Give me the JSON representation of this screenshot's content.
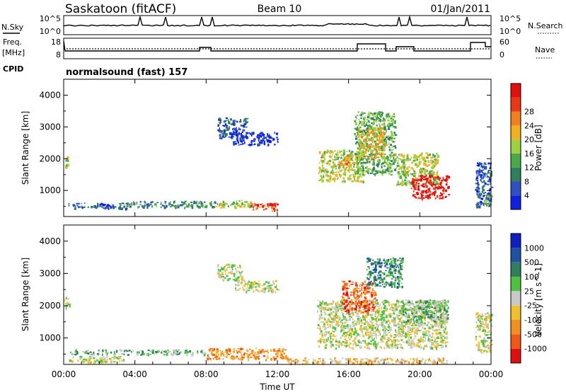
{
  "header": {
    "station": "Saskatoon (fitACF)",
    "beam": "Beam 10",
    "date": "01/Jan/2011"
  },
  "status_panels": {
    "noise": {
      "left_label": "N.Sky",
      "right_label": "N.Search",
      "left_ticks": [
        "10^5",
        "10^0"
      ],
      "right_ticks": [
        "10^5",
        "10^0"
      ]
    },
    "freq": {
      "left_label": "Freq.",
      "left_unit": "[MHz]",
      "right_label": "Nave",
      "left_ticks": [
        "18",
        "8"
      ],
      "right_ticks": [
        "60",
        "0"
      ]
    },
    "cpid": {
      "label": "CPID",
      "text": "normalsound (fast) 157"
    }
  },
  "chart_data": [
    {
      "type": "heatmap",
      "name": "power",
      "ylabel": "Slant Range [km]",
      "yticks": [
        "1000",
        "2000",
        "3000",
        "4000"
      ],
      "ylim": [
        180,
        4500
      ],
      "xlim": [
        0,
        24
      ],
      "colorbar": {
        "label": "Power [dB]",
        "tick_labels": [
          "4",
          "8",
          "12",
          "16",
          "20",
          "24",
          "28"
        ],
        "colors": [
          "#1020e0",
          "#3050c0",
          "#2f7f5f",
          "#4aa84a",
          "#9fd040",
          "#f0b020",
          "#f08020",
          "#e83818",
          "#e01010"
        ]
      },
      "echo_regions": [
        {
          "t0": 0.0,
          "t1": 0.25,
          "r0": 1650,
          "r1": 2100,
          "level": 4
        },
        {
          "t0": 0.25,
          "t1": 3.5,
          "r0": 450,
          "r1": 620,
          "level": 1
        },
        {
          "t0": 3.5,
          "t1": 8.5,
          "r0": 480,
          "r1": 680,
          "level": 2
        },
        {
          "t0": 8.5,
          "t1": 10.5,
          "r0": 480,
          "r1": 700,
          "level": 4
        },
        {
          "t0": 10.5,
          "t1": 12.0,
          "r0": 380,
          "r1": 620,
          "level": 7
        },
        {
          "t0": 8.6,
          "t1": 10.3,
          "r0": 2650,
          "r1": 3300,
          "level": 1
        },
        {
          "t0": 9.5,
          "t1": 12.0,
          "r0": 2450,
          "r1": 2850,
          "level": 0
        },
        {
          "t0": 14.3,
          "t1": 16.8,
          "r0": 1300,
          "r1": 2300,
          "level": 4
        },
        {
          "t0": 15.5,
          "t1": 16.0,
          "r0": 1800,
          "r1": 2200,
          "level": 6
        },
        {
          "t0": 16.3,
          "t1": 18.6,
          "r0": 1500,
          "r1": 3500,
          "level": 3
        },
        {
          "t0": 16.5,
          "t1": 18.0,
          "r0": 2000,
          "r1": 3000,
          "level": 5
        },
        {
          "t0": 18.6,
          "t1": 21.0,
          "r0": 1200,
          "r1": 2200,
          "level": 4
        },
        {
          "t0": 19.5,
          "t1": 21.6,
          "r0": 750,
          "r1": 1500,
          "level": 8
        },
        {
          "t0": 23.1,
          "t1": 24.0,
          "r0": 500,
          "r1": 1900,
          "level": 1
        },
        {
          "t0": 23.6,
          "t1": 24.0,
          "r0": 550,
          "r1": 900,
          "level": 3
        }
      ]
    },
    {
      "type": "heatmap",
      "name": "velocity",
      "ylabel": "Slant Range [km]",
      "yticks": [
        "1000",
        "2000",
        "3000",
        "4000"
      ],
      "ylim": [
        180,
        4500
      ],
      "xlim": [
        0,
        24
      ],
      "xticks": [
        "00:00",
        "04:00",
        "08:00",
        "12:00",
        "16:00",
        "20:00",
        "00:00"
      ],
      "xlabel": "Time UT",
      "colorbar": {
        "label": "Velocity [m s^-1]",
        "tick_labels": [
          "-1000",
          "-500",
          "-100",
          "-25",
          "25",
          "100",
          "500",
          "1000"
        ],
        "colors": [
          "#e01010",
          "#f05818",
          "#f09020",
          "#f0c030",
          "#c8c8c8",
          "#50c040",
          "#2f7f5f",
          "#2050a0",
          "#1020c0"
        ]
      },
      "echo_regions": [
        {
          "t0": 0.0,
          "t1": 0.3,
          "r0": 1900,
          "r1": 2300,
          "level": 4
        },
        {
          "t0": 0.3,
          "t1": 3.5,
          "r0": 250,
          "r1": 450,
          "level": 4
        },
        {
          "t0": 0.3,
          "t1": 8.0,
          "r0": 500,
          "r1": 650,
          "level": 5
        },
        {
          "t0": 8.0,
          "t1": 12.5,
          "r0": 350,
          "r1": 700,
          "level": 2
        },
        {
          "t0": 12.5,
          "t1": 21.5,
          "r0": 220,
          "r1": 400,
          "level": 3
        },
        {
          "t0": 8.6,
          "t1": 10.0,
          "r0": 2800,
          "r1": 3300,
          "level": 4
        },
        {
          "t0": 9.6,
          "t1": 12.0,
          "r0": 2450,
          "r1": 2800,
          "level": 4
        },
        {
          "t0": 14.2,
          "t1": 21.5,
          "r0": 700,
          "r1": 2200,
          "level": 4
        },
        {
          "t0": 15.6,
          "t1": 17.5,
          "r0": 1800,
          "r1": 2800,
          "level": 1
        },
        {
          "t0": 17.0,
          "t1": 19.0,
          "r0": 2600,
          "r1": 3500,
          "level": 6
        },
        {
          "t0": 19.0,
          "t1": 21.6,
          "r0": 1500,
          "r1": 2200,
          "level": 5
        },
        {
          "t0": 23.1,
          "t1": 24.0,
          "r0": 550,
          "r1": 1800,
          "level": 4
        }
      ]
    }
  ],
  "colors": {
    "axis": "#000000",
    "ground_scatter": "#9a9a9a"
  }
}
